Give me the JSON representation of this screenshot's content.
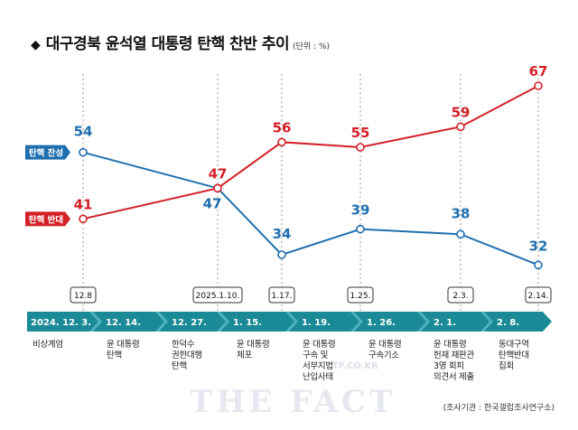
{
  "header": {
    "bullet": "◆",
    "title": "대구경북 윤석열 대통령 탄핵 찬반 추이",
    "unit": "(단위 : %)"
  },
  "colors": {
    "support": "#1f6fae",
    "oppose": "#d32027",
    "timeline": "#1b8a97",
    "guide": "#9a9a9a"
  },
  "chart_data": {
    "type": "line",
    "categories": [
      "12.8",
      "2025.1.10.",
      "1.17.",
      "1.25.",
      "2.3.",
      "2.14."
    ],
    "series": [
      {
        "name": "탄핵 찬성",
        "values": [
          54,
          47,
          34,
          39,
          38,
          32
        ]
      },
      {
        "name": "탄핵 반대",
        "values": [
          41,
          47,
          56,
          55,
          59,
          67
        ]
      }
    ],
    "ylim": [
      28,
      70
    ]
  },
  "timeline": {
    "events": [
      {
        "date": "2024. 12. 3.",
        "desc": "비상계엄"
      },
      {
        "date": "12. 14.",
        "desc": "윤 대통령\n탄핵"
      },
      {
        "date": "12. 27.",
        "desc": "한덕수\n권한대행\n탄핵"
      },
      {
        "date": "1. 15.",
        "desc": "윤 대통령\n체포"
      },
      {
        "date": "1. 19.",
        "desc": "윤 대통령\n구속 및\n서부지법\n난입사태"
      },
      {
        "date": "1. 26.",
        "desc": "윤 대통령\n구속기소"
      },
      {
        "date": "2. 1.",
        "desc": "윤 대통령\n헌재 재판관\n3명 회피\n의견서 제출"
      },
      {
        "date": "2. 8.",
        "desc": "동대구역\n탄핵반대\n집회"
      }
    ]
  },
  "source": "(조사기관 : 한국갤럽조사연구소)",
  "watermark": {
    "text": "THE FACT",
    "url": "TF.CO.KR"
  }
}
